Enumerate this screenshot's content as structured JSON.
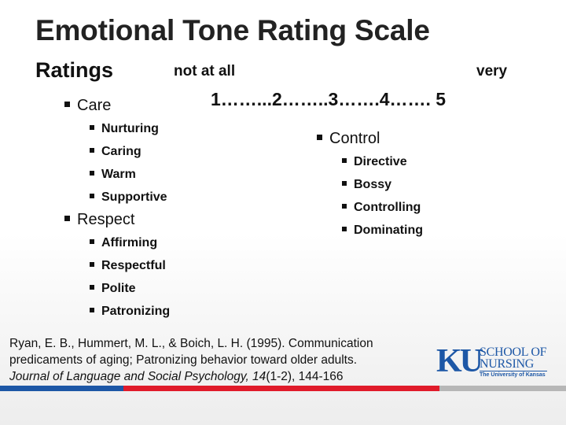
{
  "title": "Emotional Tone Rating Scale",
  "ratings_label": "Ratings",
  "scale": {
    "low_label": "not at all",
    "high_label": "very",
    "numbers": "1……...2……..3…….4…….  5"
  },
  "left_column": [
    {
      "label": "Care",
      "items": [
        "Nurturing",
        "Caring",
        "Warm",
        "Supportive"
      ]
    },
    {
      "label": "Respect",
      "items": [
        "Affirming",
        "Respectful",
        "Polite",
        "Patronizing"
      ]
    }
  ],
  "right_column": [
    {
      "label": "Control",
      "items": [
        "Directive",
        "Bossy",
        "Controlling",
        "Dominating"
      ]
    }
  ],
  "citation": {
    "line1": "Ryan, E. B., Hummert, M. L., & Boich, L. H. (1995). Communication",
    "line2": "predicaments of aging; Patronizing behavior toward older adults.",
    "journal": "Journal of Language and Social Psychology, 14",
    "rest": "(1-2), 144-166"
  },
  "logo": {
    "ku": "KU",
    "school_line1": "SCHOOL OF",
    "school_line2": "NURSING",
    "university": "The University of Kansas",
    "color": "#1d57a6"
  },
  "colors": {
    "bar_blue": "#1d57a6",
    "bar_red": "#e01b2a",
    "bar_gray": "#b7b7b7"
  },
  "icons": {
    "bullet": "square-bullet-icon"
  }
}
